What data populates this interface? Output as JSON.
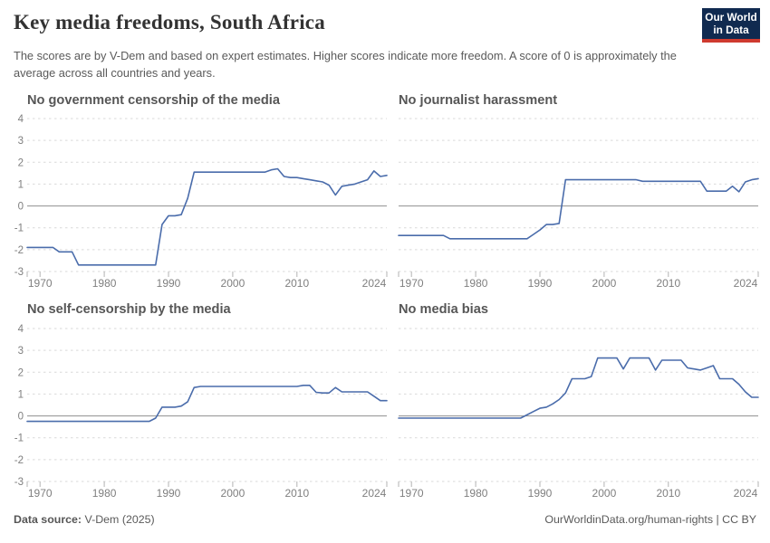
{
  "header": {
    "title": "Key media freedoms, South Africa",
    "subtitle": "The scores are by V-Dem and based on expert estimates. Higher scores indicate more freedom. A score of 0 is approximately the average across all countries and years.",
    "logo_line1": "Our World",
    "logo_line2": "in Data"
  },
  "footer": {
    "source_label": "Data source:",
    "source_value": " V-Dem (2025)",
    "credit": "OurWorldinData.org/human-rights | CC BY"
  },
  "colors": {
    "line": "#4a6cab",
    "grid": "#d9d9d9",
    "zero_line": "#8f8f8f",
    "tick_label": "#7f7f7f",
    "axis_tick": "#b3b3b3",
    "logo_bg": "#102a50",
    "logo_stripe": "#cf3a2f"
  },
  "chart_data": [
    {
      "type": "line",
      "title": "No government censorship of the media",
      "x_start": 1968,
      "x_end": 2024,
      "xticks": [
        1970,
        1980,
        1990,
        2000,
        2010,
        2024
      ],
      "yticks": [
        -3,
        -2,
        -1,
        0,
        1,
        2,
        3,
        4
      ],
      "ylim": [
        -3,
        4
      ],
      "show_y_labels": true,
      "grid": true,
      "legend": "none",
      "series": [
        {
          "name": "South Africa",
          "values": [
            -1.9,
            -1.9,
            -1.9,
            -1.9,
            -1.9,
            -2.1,
            -2.1,
            -2.1,
            -2.7,
            -2.7,
            -2.7,
            -2.7,
            -2.7,
            -2.7,
            -2.7,
            -2.7,
            -2.7,
            -2.7,
            -2.7,
            -2.7,
            -2.7,
            -0.85,
            -0.45,
            -0.45,
            -0.4,
            0.35,
            1.55,
            1.55,
            1.55,
            1.55,
            1.55,
            1.55,
            1.55,
            1.55,
            1.55,
            1.55,
            1.55,
            1.55,
            1.65,
            1.7,
            1.35,
            1.3,
            1.3,
            1.25,
            1.2,
            1.15,
            1.1,
            0.95,
            0.5,
            0.9,
            0.95,
            1.0,
            1.1,
            1.2,
            1.6,
            1.35,
            1.4
          ]
        }
      ]
    },
    {
      "type": "line",
      "title": "No journalist harassment",
      "x_start": 1968,
      "x_end": 2024,
      "xticks": [
        1970,
        1980,
        1990,
        2000,
        2010,
        2024
      ],
      "yticks": [
        -3,
        -2,
        -1,
        0,
        1,
        2,
        3,
        4
      ],
      "ylim": [
        -3,
        4
      ],
      "show_y_labels": false,
      "grid": true,
      "legend": "none",
      "series": [
        {
          "name": "South Africa",
          "values": [
            -1.35,
            -1.35,
            -1.35,
            -1.35,
            -1.35,
            -1.35,
            -1.35,
            -1.35,
            -1.5,
            -1.5,
            -1.5,
            -1.5,
            -1.5,
            -1.5,
            -1.5,
            -1.5,
            -1.5,
            -1.5,
            -1.5,
            -1.5,
            -1.5,
            -1.3,
            -1.1,
            -0.85,
            -0.85,
            -0.8,
            1.2,
            1.2,
            1.2,
            1.2,
            1.2,
            1.2,
            1.2,
            1.2,
            1.2,
            1.2,
            1.2,
            1.2,
            1.13,
            1.13,
            1.13,
            1.13,
            1.13,
            1.13,
            1.13,
            1.13,
            1.13,
            1.13,
            0.68,
            0.68,
            0.68,
            0.68,
            0.9,
            0.65,
            1.1,
            1.2,
            1.25
          ]
        }
      ]
    },
    {
      "type": "line",
      "title": "No self-censorship by the media",
      "x_start": 1968,
      "x_end": 2024,
      "xticks": [
        1970,
        1980,
        1990,
        2000,
        2010,
        2024
      ],
      "yticks": [
        -3,
        -2,
        -1,
        0,
        1,
        2,
        3,
        4
      ],
      "ylim": [
        -3,
        4
      ],
      "show_y_labels": true,
      "grid": true,
      "legend": "none",
      "series": [
        {
          "name": "South Africa",
          "values": [
            -0.25,
            -0.25,
            -0.25,
            -0.25,
            -0.25,
            -0.25,
            -0.25,
            -0.25,
            -0.25,
            -0.25,
            -0.25,
            -0.25,
            -0.25,
            -0.25,
            -0.25,
            -0.25,
            -0.25,
            -0.25,
            -0.25,
            -0.25,
            -0.1,
            0.4,
            0.4,
            0.4,
            0.45,
            0.65,
            1.3,
            1.35,
            1.35,
            1.35,
            1.35,
            1.35,
            1.35,
            1.35,
            1.35,
            1.35,
            1.35,
            1.35,
            1.35,
            1.35,
            1.35,
            1.35,
            1.35,
            1.4,
            1.4,
            1.08,
            1.05,
            1.05,
            1.3,
            1.1,
            1.1,
            1.1,
            1.1,
            1.1,
            0.9,
            0.7,
            0.7
          ]
        }
      ]
    },
    {
      "type": "line",
      "title": "No media bias",
      "x_start": 1968,
      "x_end": 2024,
      "xticks": [
        1970,
        1980,
        1990,
        2000,
        2010,
        2024
      ],
      "yticks": [
        -3,
        -2,
        -1,
        0,
        1,
        2,
        3,
        4
      ],
      "ylim": [
        -3,
        4
      ],
      "show_y_labels": false,
      "grid": true,
      "legend": "none",
      "series": [
        {
          "name": "South Africa",
          "values": [
            -0.1,
            -0.1,
            -0.1,
            -0.1,
            -0.1,
            -0.1,
            -0.1,
            -0.1,
            -0.1,
            -0.1,
            -0.1,
            -0.1,
            -0.1,
            -0.1,
            -0.1,
            -0.1,
            -0.1,
            -0.1,
            -0.1,
            -0.1,
            0.05,
            0.2,
            0.35,
            0.4,
            0.55,
            0.75,
            1.05,
            1.7,
            1.7,
            1.7,
            1.8,
            2.65,
            2.65,
            2.65,
            2.65,
            2.15,
            2.65,
            2.65,
            2.65,
            2.65,
            2.1,
            2.55,
            2.55,
            2.55,
            2.55,
            2.2,
            2.15,
            2.1,
            2.2,
            2.3,
            1.7,
            1.7,
            1.7,
            1.45,
            1.1,
            0.85,
            0.85
          ]
        }
      ]
    }
  ]
}
